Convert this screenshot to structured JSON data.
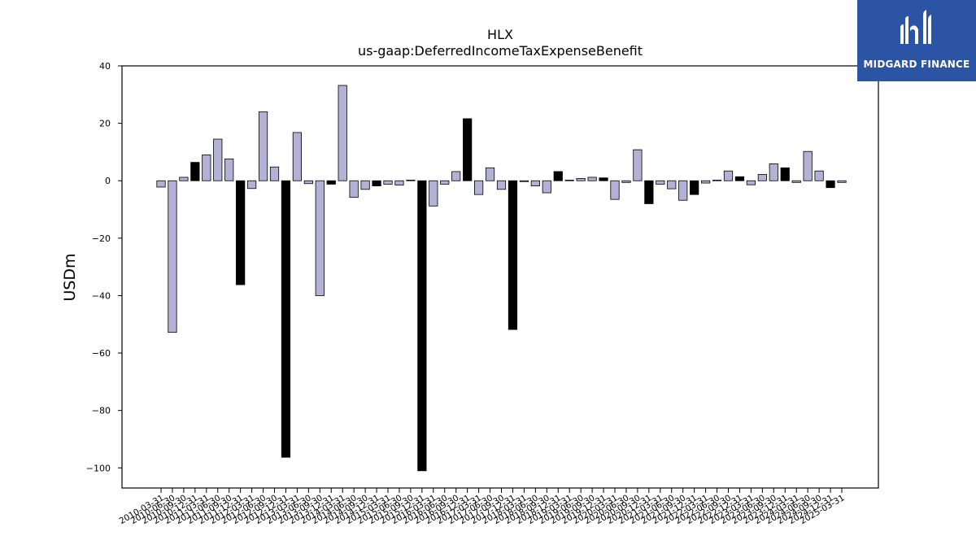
{
  "chart_data": {
    "type": "bar",
    "title": "HLX",
    "subtitle": "us-gaap:DeferredIncomeTaxExpenseBenefit",
    "ylabel": "USDm",
    "xlabel": "",
    "ylim": [
      -107,
      40
    ],
    "yticks": [
      40,
      20,
      0,
      -20,
      -40,
      -60,
      -80,
      -100
    ],
    "grid": false,
    "categories": [
      "2010-03-31",
      "2010-06-30",
      "2010-09-30",
      "2010-12-31",
      "2011-03-31",
      "2011-06-30",
      "2011-09-30",
      "2011-12-31",
      "2012-03-31",
      "2012-06-30",
      "2012-09-30",
      "2012-12-31",
      "2013-03-31",
      "2013-06-30",
      "2013-09-30",
      "2013-12-31",
      "2014-03-31",
      "2014-06-30",
      "2014-09-30",
      "2014-12-31",
      "2015-03-31",
      "2015-06-30",
      "2015-09-30",
      "2015-12-31",
      "2016-03-31",
      "2016-06-30",
      "2016-09-30",
      "2016-12-31",
      "2017-03-31",
      "2017-06-30",
      "2017-09-30",
      "2017-12-31",
      "2018-03-31",
      "2018-06-30",
      "2018-09-30",
      "2018-12-31",
      "2019-03-31",
      "2019-06-30",
      "2019-09-30",
      "2019-12-31",
      "2020-03-31",
      "2020-06-30",
      "2020-09-30",
      "2020-12-31",
      "2021-03-31",
      "2021-06-30",
      "2021-09-30",
      "2021-12-31",
      "2022-03-31",
      "2022-06-30",
      "2022-09-30",
      "2022-12-31",
      "2023-03-31",
      "2023-06-30",
      "2023-09-30",
      "2023-12-31",
      "2024-03-31",
      "2024-06-30",
      "2024-09-30",
      "2024-12-31",
      "2025-03-31"
    ],
    "values": [
      -2.2,
      -52.8,
      1.2,
      6.4,
      9.0,
      14.5,
      7.6,
      -36.2,
      -2.7,
      24.0,
      4.8,
      -96.3,
      16.8,
      -1.0,
      -40.0,
      -1.2,
      33.2,
      -5.8,
      -3.0,
      -1.8,
      -1.2,
      -1.5,
      0.2,
      -101.0,
      -8.8,
      -1.2,
      3.2,
      21.6,
      -4.8,
      4.5,
      -3.0,
      -51.8,
      -0.3,
      -1.8,
      -4.2,
      3.2,
      0.2,
      0.8,
      1.2,
      1.0,
      -6.5,
      -0.6,
      10.8,
      -8.0,
      -1.2,
      -2.8,
      -6.8,
      -4.8,
      -0.8,
      0.2,
      3.4,
      1.4,
      -1.4,
      2.2,
      5.9,
      4.5,
      -0.6,
      10.2,
      3.4,
      -2.4,
      -0.6
    ],
    "highlight_indices": [
      3,
      7,
      11,
      15,
      19,
      23,
      27,
      31,
      35,
      39,
      43,
      47,
      51,
      55,
      59
    ],
    "colors": {
      "bar": "#b5b0d5",
      "highlight": "#000000",
      "edge": "#000000"
    }
  },
  "logo": {
    "text": "MIDGARD FINANCE",
    "background": "#2c54a4"
  }
}
